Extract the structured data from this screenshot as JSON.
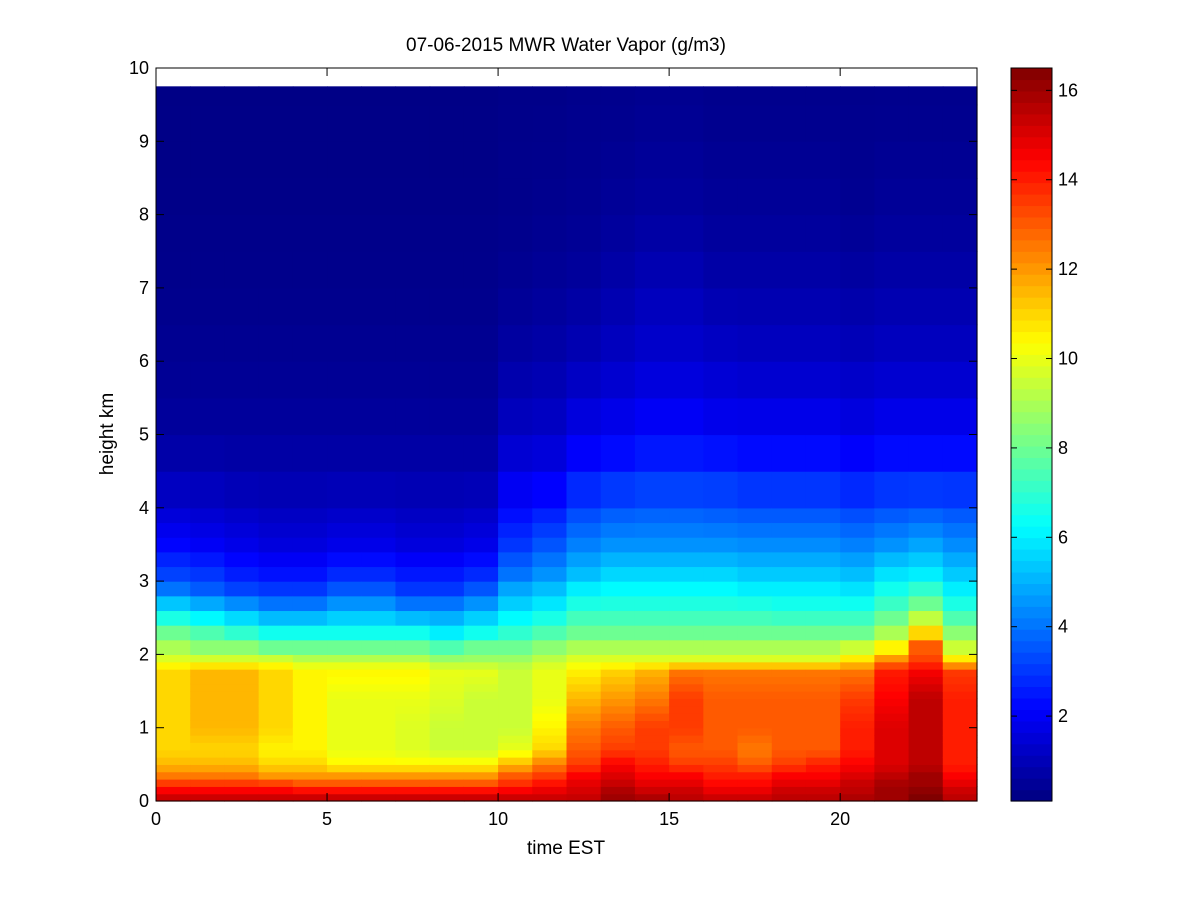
{
  "chart_data": {
    "type": "heatmap",
    "title": "07-06-2015 MWR Water Vapor (g/m3)",
    "xlabel": "time EST",
    "ylabel": "height km",
    "xlim": [
      0,
      24
    ],
    "ylim": [
      0,
      10
    ],
    "x_ticks": [
      "0",
      "5",
      "10",
      "15",
      "20"
    ],
    "y_ticks": [
      "0",
      "1",
      "2",
      "3",
      "4",
      "5",
      "6",
      "7",
      "8",
      "9",
      "10"
    ],
    "colorbar": {
      "range": [
        0.1,
        16.5
      ],
      "colormap": "jet",
      "ticks": [
        "2",
        "4",
        "6",
        "8",
        "10",
        "12",
        "14",
        "16"
      ]
    },
    "time_bins": [
      0.5,
      1.5,
      2.5,
      3.5,
      4.5,
      5.5,
      6.5,
      7.5,
      8.5,
      9.5,
      10.5,
      11.5,
      12.5,
      13.5,
      14.5,
      15.5,
      16.5,
      17.5,
      18.5,
      19.5,
      20.5,
      21.5,
      22.5,
      23.5
    ],
    "height_max_km": 9.75,
    "profiles_g_m3": {
      "heights_km": [
        0,
        0.1,
        0.2,
        0.35,
        0.5,
        0.7,
        1.0,
        1.4,
        1.8,
        1.9,
        2.1,
        2.3,
        2.6,
        2.9,
        3.1,
        3.5,
        4.0,
        4.5,
        5.0,
        6.0,
        7.0,
        8.0,
        9.75
      ],
      "series": [
        {
          "values": [
            15.5,
            15.0,
            14.0,
            12.5,
            11.5,
            11.0,
            11.0,
            11.0,
            11.0,
            10.0,
            9.0,
            8.0,
            6.0,
            4.0,
            3.2,
            2.2,
            1.4,
            0.9,
            0.6,
            0.4,
            0.3,
            0.25,
            0.2
          ]
        },
        {
          "values": [
            15.5,
            15.0,
            14.0,
            12.5,
            11.5,
            11.0,
            11.5,
            11.5,
            11.5,
            10.0,
            8.5,
            7.5,
            5.5,
            3.6,
            3.0,
            2.0,
            1.3,
            0.9,
            0.6,
            0.4,
            0.3,
            0.25,
            0.2
          ]
        },
        {
          "values": [
            15.5,
            15.0,
            14.0,
            12.5,
            11.5,
            11.0,
            11.5,
            11.5,
            11.5,
            10.0,
            8.5,
            7.0,
            5.0,
            3.2,
            2.6,
            1.8,
            1.2,
            0.8,
            0.6,
            0.4,
            0.3,
            0.25,
            0.2
          ]
        },
        {
          "values": [
            15.5,
            15.0,
            14.0,
            12.0,
            11.0,
            10.5,
            11.0,
            11.0,
            11.0,
            10.0,
            8.0,
            6.5,
            4.5,
            3.0,
            2.4,
            1.6,
            1.1,
            0.8,
            0.6,
            0.4,
            0.3,
            0.25,
            0.2
          ]
        },
        {
          "values": [
            15.5,
            15.0,
            13.5,
            12.0,
            11.0,
            10.5,
            10.5,
            10.5,
            10.5,
            9.5,
            8.0,
            6.5,
            4.5,
            3.0,
            2.4,
            1.6,
            1.1,
            0.8,
            0.6,
            0.4,
            0.3,
            0.25,
            0.2
          ]
        },
        {
          "values": [
            15.5,
            15.0,
            13.5,
            12.0,
            10.5,
            10.0,
            10.0,
            10.0,
            10.5,
            9.5,
            8.0,
            6.5,
            5.0,
            3.5,
            2.8,
            1.8,
            1.2,
            0.8,
            0.6,
            0.4,
            0.3,
            0.25,
            0.2
          ]
        },
        {
          "values": [
            15.5,
            15.0,
            13.5,
            12.0,
            10.5,
            10.0,
            10.0,
            10.0,
            10.5,
            9.5,
            8.0,
            6.5,
            5.0,
            3.5,
            2.8,
            1.8,
            1.2,
            0.8,
            0.6,
            0.4,
            0.3,
            0.25,
            0.2
          ]
        },
        {
          "values": [
            15.5,
            15.0,
            13.5,
            12.0,
            10.5,
            9.8,
            9.8,
            10.0,
            10.5,
            9.5,
            8.0,
            6.5,
            4.5,
            3.0,
            2.5,
            1.6,
            1.1,
            0.8,
            0.6,
            0.4,
            0.3,
            0.25,
            0.2
          ]
        },
        {
          "values": [
            15.5,
            15.0,
            13.5,
            12.0,
            10.5,
            9.5,
            9.5,
            9.8,
            10.0,
            9.0,
            7.5,
            6.0,
            4.5,
            3.0,
            2.5,
            1.6,
            1.1,
            0.8,
            0.6,
            0.4,
            0.3,
            0.25,
            0.2
          ]
        },
        {
          "values": [
            15.5,
            15.0,
            13.5,
            12.0,
            10.5,
            9.5,
            9.5,
            9.5,
            10.0,
            9.0,
            8.0,
            6.5,
            5.0,
            3.5,
            2.8,
            1.8,
            1.2,
            0.8,
            0.6,
            0.4,
            0.3,
            0.25,
            0.2
          ]
        },
        {
          "values": [
            15.5,
            15.0,
            14.0,
            13.0,
            11.5,
            10.0,
            9.5,
            9.5,
            9.5,
            9.0,
            8.0,
            7.0,
            5.8,
            4.8,
            4.0,
            3.0,
            2.2,
            1.7,
            1.2,
            0.7,
            0.4,
            0.3,
            0.25
          ]
        },
        {
          "values": [
            15.5,
            15.0,
            14.5,
            13.5,
            12.5,
            11.0,
            10.5,
            10.0,
            10.0,
            9.5,
            8.5,
            7.5,
            6.2,
            5.2,
            4.5,
            3.5,
            2.5,
            1.8,
            1.3,
            0.8,
            0.5,
            0.35,
            0.25
          ]
        },
        {
          "values": [
            15.5,
            15.2,
            15.0,
            14.5,
            13.5,
            13.0,
            12.5,
            11.5,
            10.5,
            10.0,
            9.0,
            8.0,
            7.0,
            6.0,
            5.2,
            4.2,
            3.2,
            2.4,
            1.8,
            1.0,
            0.6,
            0.4,
            0.3
          ]
        },
        {
          "values": [
            16.0,
            16.0,
            15.5,
            15.0,
            14.5,
            13.5,
            13.0,
            12.0,
            11.0,
            10.0,
            9.0,
            8.0,
            7.0,
            6.2,
            5.6,
            4.5,
            3.5,
            2.6,
            2.0,
            1.2,
            0.8,
            0.5,
            0.3
          ]
        },
        {
          "values": [
            16.0,
            15.5,
            15.0,
            14.5,
            14.0,
            13.5,
            13.5,
            12.5,
            11.5,
            10.0,
            9.0,
            8.0,
            7.0,
            6.2,
            5.6,
            4.5,
            3.6,
            2.8,
            2.2,
            1.4,
            1.0,
            0.6,
            0.35
          ]
        },
        {
          "values": [
            15.5,
            15.5,
            15.0,
            14.5,
            13.5,
            13.0,
            13.5,
            13.5,
            12.5,
            10.0,
            9.0,
            8.0,
            7.0,
            6.2,
            5.6,
            4.5,
            3.6,
            2.8,
            2.2,
            1.4,
            1.0,
            0.6,
            0.35
          ]
        },
        {
          "values": [
            15.5,
            15.0,
            14.5,
            14.0,
            13.5,
            13.0,
            13.0,
            13.0,
            12.5,
            10.0,
            9.0,
            8.0,
            7.0,
            6.2,
            5.6,
            4.5,
            3.5,
            2.8,
            2.0,
            1.3,
            0.8,
            0.5,
            0.3
          ]
        },
        {
          "values": [
            15.5,
            15.0,
            14.5,
            14.0,
            13.0,
            12.5,
            13.0,
            13.0,
            12.5,
            10.0,
            9.0,
            8.0,
            7.0,
            6.0,
            5.4,
            4.4,
            3.4,
            2.6,
            2.0,
            1.2,
            0.8,
            0.5,
            0.3
          ]
        },
        {
          "values": [
            15.5,
            15.5,
            15.0,
            14.5,
            13.5,
            13.0,
            13.0,
            13.0,
            12.5,
            10.0,
            9.0,
            8.0,
            6.8,
            6.0,
            5.4,
            4.4,
            3.4,
            2.6,
            2.0,
            1.2,
            0.8,
            0.5,
            0.3
          ]
        },
        {
          "values": [
            15.5,
            15.5,
            15.0,
            14.5,
            14.0,
            13.0,
            13.0,
            13.0,
            12.5,
            10.0,
            9.0,
            8.0,
            6.8,
            6.0,
            5.4,
            4.4,
            3.4,
            2.6,
            2.0,
            1.2,
            0.8,
            0.5,
            0.3
          ]
        },
        {
          "values": [
            16.0,
            15.5,
            15.5,
            15.0,
            14.5,
            14.0,
            14.0,
            13.5,
            12.5,
            11.0,
            9.5,
            8.0,
            6.8,
            5.8,
            5.2,
            4.2,
            3.2,
            2.4,
            1.8,
            1.1,
            0.7,
            0.4,
            0.3
          ]
        },
        {
          "values": [
            16.0,
            16.0,
            16.0,
            15.5,
            15.0,
            15.0,
            15.0,
            14.5,
            14.0,
            12.5,
            10.5,
            9.0,
            7.5,
            6.5,
            5.8,
            4.5,
            3.4,
            2.6,
            2.0,
            1.2,
            0.8,
            0.5,
            0.3
          ]
        },
        {
          "values": [
            16.5,
            16.5,
            16.0,
            16.0,
            15.5,
            15.5,
            15.5,
            15.5,
            14.5,
            13.5,
            13.0,
            11.0,
            8.5,
            7.0,
            6.0,
            4.8,
            3.5,
            2.6,
            2.0,
            1.2,
            0.8,
            0.5,
            0.3
          ]
        },
        {
          "values": [
            15.5,
            15.5,
            15.0,
            14.5,
            14.0,
            14.0,
            14.0,
            14.0,
            13.5,
            11.0,
            9.5,
            8.5,
            7.0,
            6.0,
            5.4,
            4.4,
            3.4,
            2.6,
            2.0,
            1.2,
            0.8,
            0.5,
            0.3
          ]
        }
      ]
    }
  }
}
